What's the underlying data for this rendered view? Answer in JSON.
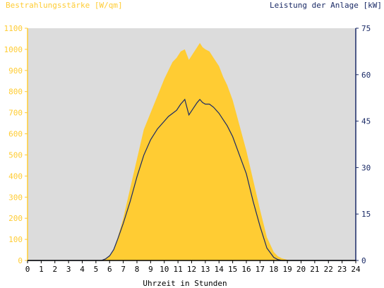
{
  "chart_data": {
    "type": "area",
    "title": "",
    "left_axis_label": "Bestrahlungsstärke [W/qm]",
    "right_axis_label": "Leistung der Anlage [kW]",
    "xlabel": "Uhrzeit in Stunden",
    "xlim": [
      0,
      24
    ],
    "ylim_left": [
      0,
      1100
    ],
    "ylim_right": [
      0,
      75
    ],
    "x_ticks": [
      "0",
      "1",
      "2",
      "3",
      "4",
      "5",
      "6",
      "7",
      "8",
      "9",
      "10",
      "11",
      "12",
      "13",
      "14",
      "15",
      "16",
      "17",
      "18",
      "19",
      "20",
      "21",
      "22",
      "23",
      "24"
    ],
    "y_left_ticks": [
      "0",
      "100",
      "200",
      "300",
      "400",
      "500",
      "600",
      "700",
      "800",
      "900",
      "1000",
      "1100"
    ],
    "y_right_ticks": [
      "0",
      "15",
      "30",
      "45",
      "60",
      "75"
    ],
    "grid": false,
    "colors": {
      "plot_background": "#dcdcdc",
      "irradiance": "#ffcc33",
      "power": "#1a2a66",
      "left_axis": "#ffcc33",
      "right_axis": "#1a2a66"
    },
    "series": [
      {
        "name": "Bestrahlungsstärke [W/qm]",
        "axis": "left",
        "x": [
          5.4,
          5.7,
          6.0,
          6.3,
          6.6,
          7.0,
          7.5,
          8.0,
          8.5,
          9.0,
          9.5,
          10.0,
          10.3,
          10.6,
          10.9,
          11.2,
          11.5,
          11.8,
          12.1,
          12.4,
          12.6,
          12.8,
          13.0,
          13.3,
          13.6,
          14.0,
          14.3,
          14.6,
          15.0,
          15.5,
          16.0,
          16.5,
          17.0,
          17.5,
          18.0,
          18.3,
          18.6,
          19.0,
          19.3
        ],
        "y": [
          0,
          10,
          25,
          55,
          110,
          200,
          340,
          480,
          620,
          700,
          780,
          860,
          900,
          940,
          960,
          990,
          1000,
          950,
          980,
          1010,
          1030,
          1010,
          1000,
          990,
          960,
          920,
          870,
          830,
          760,
          640,
          520,
          380,
          240,
          110,
          40,
          20,
          10,
          3,
          0
        ]
      },
      {
        "name": "Leistung der Anlage [kW]",
        "axis": "right",
        "x": [
          5.4,
          5.7,
          6.0,
          6.3,
          6.6,
          7.0,
          7.5,
          8.0,
          8.5,
          9.0,
          9.5,
          10.0,
          10.3,
          10.6,
          10.9,
          11.2,
          11.5,
          11.8,
          12.1,
          12.4,
          12.6,
          12.8,
          13.0,
          13.3,
          13.6,
          14.0,
          14.3,
          14.6,
          15.0,
          15.5,
          16.0,
          16.5,
          17.0,
          17.5,
          18.0,
          18.3,
          18.6,
          19.0,
          19.3
        ],
        "y": [
          0,
          0.5,
          1.5,
          3.5,
          7,
          12,
          19,
          27,
          34,
          39,
          42.5,
          45,
          46.5,
          47.5,
          48.5,
          50.5,
          52,
          47,
          49,
          51,
          52,
          51,
          50.5,
          50.5,
          49.5,
          47.5,
          45.5,
          43.5,
          40,
          34,
          28,
          19,
          11,
          4,
          1,
          0.3,
          0,
          0,
          0
        ]
      }
    ]
  }
}
